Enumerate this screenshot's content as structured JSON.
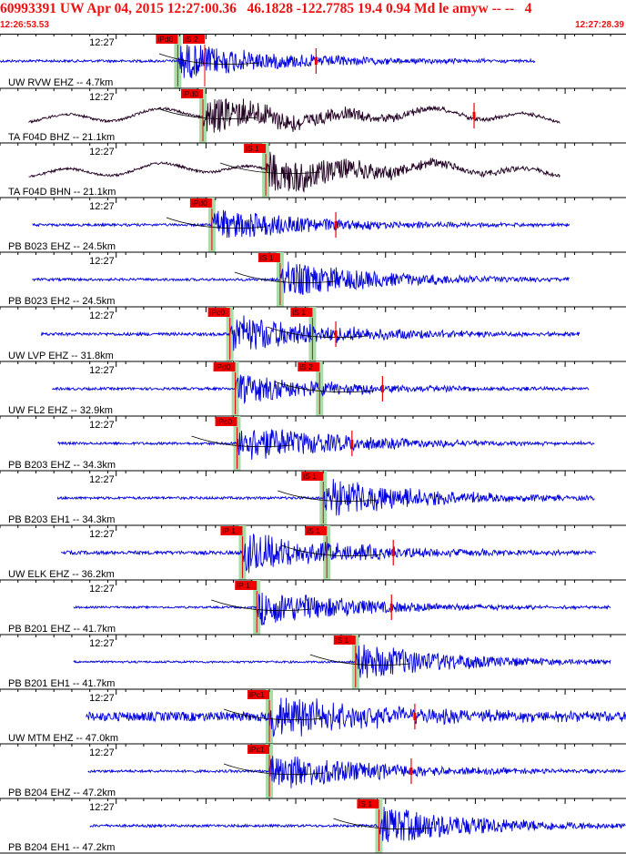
{
  "header": {
    "title": "60993391 UW Apr 04, 2015 12:27:00.36   46.1828 -122.7785 19.4 0.94 Md le amyw -- --   4",
    "start_time": "12:26:53.53",
    "end_time": "12:27:28.39"
  },
  "colors": {
    "title": "#ee1111",
    "trace_blue": "#0000dd",
    "trace_dark": "#220022",
    "pick_box": "#ee0000",
    "travel_curve": "#000000",
    "green_band": "#a8dca8",
    "grid": "#000000"
  },
  "chart_data": {
    "type": "line",
    "time_start": "12:26:53.53",
    "time_end": "12:27:28.39",
    "duration_s": 34.86,
    "minute_label": "12:27",
    "minute_label_time_s": 6.47,
    "tick_interval_s": 1,
    "traces": [
      {
        "label": "UW RVW EHZ -- 4.7km",
        "color": "blue",
        "trace_start_s": 0.0,
        "trace_end_s": 29.8,
        "onset_s": 9.9,
        "noise": 0.05,
        "peak": 0.75,
        "picks": [
          {
            "text": "iPd0",
            "t_s": 9.9,
            "band": true
          },
          {
            "text": "iS 2",
            "t_s": 11.4,
            "band": false
          }
        ],
        "amp_marks": [
          17.6
        ]
      },
      {
        "label": "TA F04D BHZ -- 21.1km",
        "color": "dark",
        "trace_start_s": 1.6,
        "trace_end_s": 31.2,
        "onset_s": 11.3,
        "noise": 0.25,
        "peak": 0.8,
        "picks": [
          {
            "text": "iPd0",
            "t_s": 11.3,
            "band": true
          }
        ],
        "amp_marks": [
          26.4
        ]
      },
      {
        "label": "TA F04D BHN -- 21.1km",
        "color": "dark",
        "trace_start_s": 1.6,
        "trace_end_s": 31.2,
        "onset_s": 14.8,
        "noise": 0.25,
        "peak": 0.8,
        "picks": [
          {
            "text": "iS 1",
            "t_s": 14.8,
            "band": true
          }
        ],
        "amp_marks": []
      },
      {
        "label": "PB B023 EHZ -- 24.5km",
        "color": "blue",
        "trace_start_s": 1.8,
        "trace_end_s": 31.7,
        "onset_s": 11.8,
        "noise": 0.05,
        "peak": 0.7,
        "picks": [
          {
            "text": "iPd0",
            "t_s": 11.8,
            "band": true
          }
        ],
        "amp_marks": [
          18.7
        ]
      },
      {
        "label": "PB B023 EH2 -- 24.5km",
        "color": "blue",
        "trace_start_s": 1.8,
        "trace_end_s": 31.7,
        "onset_s": 15.6,
        "noise": 0.05,
        "peak": 0.75,
        "picks": [
          {
            "text": "iS 1",
            "t_s": 15.6,
            "band": true
          }
        ],
        "amp_marks": []
      },
      {
        "label": "UW LVP EHZ -- 31.8km",
        "color": "blue",
        "trace_start_s": 2.3,
        "trace_end_s": 32.3,
        "onset_s": 12.8,
        "noise": 0.06,
        "peak": 0.8,
        "picks": [
          {
            "text": "iPc0",
            "t_s": 12.8,
            "band": true
          },
          {
            "text": "iS 1",
            "t_s": 17.4,
            "band": true
          }
        ],
        "amp_marks": [
          18.7
        ]
      },
      {
        "label": "UW FL2 EHZ -- 32.9km",
        "color": "blue",
        "trace_start_s": 2.9,
        "trace_end_s": 32.8,
        "onset_s": 13.1,
        "noise": 0.05,
        "peak": 0.6,
        "picks": [
          {
            "text": "iPd0",
            "t_s": 13.1,
            "band": true
          },
          {
            "text": "iS 2",
            "t_s": 17.8,
            "band": true
          }
        ],
        "amp_marks": [
          21.3
        ]
      },
      {
        "label": "PB B203 EHZ -- 34.3km",
        "color": "blue",
        "trace_start_s": 3.2,
        "trace_end_s": 33.1,
        "onset_s": 13.2,
        "noise": 0.05,
        "peak": 0.8,
        "picks": [
          {
            "text": "iPc0",
            "t_s": 13.2,
            "band": true
          }
        ],
        "amp_marks": [
          19.6
        ]
      },
      {
        "label": "PB B203 EH1 -- 34.3km",
        "color": "blue",
        "trace_start_s": 3.2,
        "trace_end_s": 33.1,
        "onset_s": 18.0,
        "noise": 0.05,
        "peak": 0.8,
        "picks": [
          {
            "text": "iS 1",
            "t_s": 18.0,
            "band": true
          }
        ],
        "amp_marks": []
      },
      {
        "label": "UW ELK EHZ -- 36.2km",
        "color": "blue",
        "trace_start_s": 3.4,
        "trace_end_s": 33.2,
        "onset_s": 13.5,
        "noise": 0.07,
        "peak": 0.8,
        "picks": [
          {
            "text": "iP 1",
            "t_s": 13.5,
            "band": true
          },
          {
            "text": "iS 1",
            "t_s": 18.2,
            "band": true
          }
        ],
        "amp_marks": [
          21.9
        ]
      },
      {
        "label": "PB B201 EHZ -- 41.7km",
        "color": "blue",
        "trace_start_s": 4.1,
        "trace_end_s": 34.0,
        "onset_s": 14.3,
        "noise": 0.04,
        "peak": 0.75,
        "picks": [
          {
            "text": "iP 1",
            "t_s": 14.3,
            "band": true
          }
        ],
        "amp_marks": [
          21.8
        ]
      },
      {
        "label": "PB B201 EH1 -- 41.7km",
        "color": "blue",
        "trace_start_s": 4.1,
        "trace_end_s": 34.0,
        "onset_s": 19.8,
        "noise": 0.04,
        "peak": 0.75,
        "picks": [
          {
            "text": "iS 1",
            "t_s": 19.8,
            "band": true
          }
        ],
        "amp_marks": []
      },
      {
        "label": "UW MTM EHZ -- 47.0km",
        "color": "blue",
        "trace_start_s": 4.8,
        "trace_end_s": 34.86,
        "onset_s": 15.0,
        "noise": 0.18,
        "peak": 0.85,
        "picks": [
          {
            "text": "iPc1",
            "t_s": 15.0,
            "band": true
          }
        ],
        "amp_marks": [
          23.1
        ]
      },
      {
        "label": "PB B204 EHZ -- 47.2km",
        "color": "blue",
        "trace_start_s": 4.9,
        "trace_end_s": 34.86,
        "onset_s": 15.0,
        "noise": 0.05,
        "peak": 0.8,
        "picks": [
          {
            "text": "iPc1",
            "t_s": 15.0,
            "band": true
          }
        ],
        "amp_marks": [
          22.9
        ]
      },
      {
        "label": "PB B204 EH1 -- 47.2km",
        "color": "blue",
        "trace_start_s": 5.0,
        "trace_end_s": 34.86,
        "onset_s": 21.1,
        "noise": 0.05,
        "peak": 0.8,
        "picks": [
          {
            "text": "iS 1",
            "t_s": 21.1,
            "band": true
          }
        ],
        "amp_marks": []
      }
    ]
  }
}
